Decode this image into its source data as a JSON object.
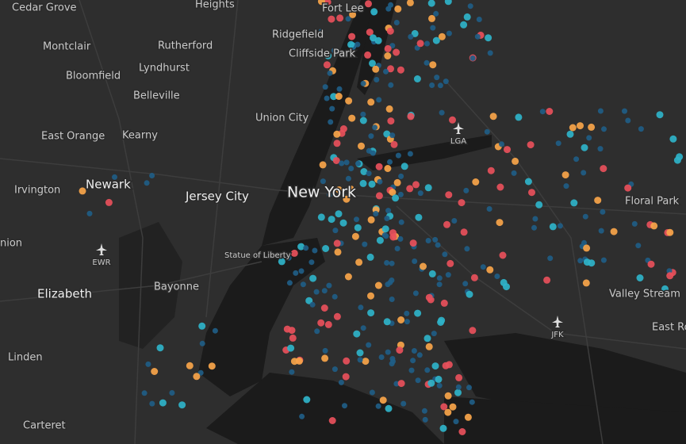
{
  "map": {
    "places": [
      {
        "text": "Cedar Grove"
      },
      {
        "text": "Heights"
      },
      {
        "text": "Fort Lee"
      },
      {
        "text": "Ridgefield"
      },
      {
        "text": "Montclair"
      },
      {
        "text": "Rutherford"
      },
      {
        "text": "Cliffside Park"
      },
      {
        "text": "Lyndhurst"
      },
      {
        "text": "Bloomfield"
      },
      {
        "text": "Belleville"
      },
      {
        "text": "Union City"
      },
      {
        "text": "East Orange"
      },
      {
        "text": "Kearny"
      },
      {
        "text": "Newark"
      },
      {
        "text": "Irvington"
      },
      {
        "text": "Jersey City"
      },
      {
        "text": "New York"
      },
      {
        "text": "Floral Park"
      },
      {
        "text": "nion"
      },
      {
        "text": "Statue of Liberty"
      },
      {
        "text": "Bayonne"
      },
      {
        "text": "Elizabeth"
      },
      {
        "text": "Valley Stream"
      },
      {
        "text": "East Ro"
      },
      {
        "text": "Linden"
      },
      {
        "text": "Carteret"
      }
    ],
    "airports": [
      {
        "text": "LGA"
      },
      {
        "text": "EWR"
      },
      {
        "text": "JFK"
      }
    ]
  }
}
